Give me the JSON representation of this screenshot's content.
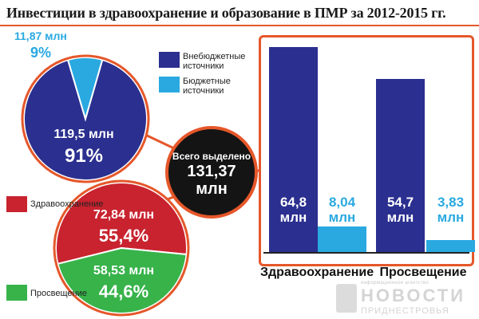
{
  "title": "Инвестиции в здравоохранение и образование в ПМР за 2012-2015 гг.",
  "colors": {
    "dark_blue": "#2b2f8f",
    "light_blue": "#2aa9e0",
    "red": "#c8232f",
    "green": "#37b34a",
    "accent": "#e5572a"
  },
  "legend_sources": [
    {
      "label": "Внебюджетные источники",
      "color": "#2b2f8f"
    },
    {
      "label": "Бюджетные источники",
      "color": "#2aa9e0"
    }
  ],
  "legend_sectors": [
    {
      "label": "Здравоохранение",
      "color": "#c8232f"
    },
    {
      "label": "Просвещение",
      "color": "#37b34a"
    }
  ],
  "total": {
    "caption": "Всего выделено",
    "value_line1": "131,37",
    "value_line2": "млн"
  },
  "chart_data": [
    {
      "type": "pie",
      "slices": [
        {
          "label": "Внебюджетные источники",
          "value": 119.5,
          "value_text": "119,5 млн",
          "percent_text": "91%",
          "color": "#2b2f8f"
        },
        {
          "label": "Бюджетные источники",
          "value": 11.87,
          "value_text": "11,87 млн",
          "percent_text": "9%",
          "color": "#2aa9e0"
        }
      ]
    },
    {
      "type": "pie",
      "slices": [
        {
          "label": "Здравоохранение",
          "value": 72.84,
          "value_text": "72,84 млн",
          "percent_text": "55,4%",
          "color": "#c8232f"
        },
        {
          "label": "Просвещение",
          "value": 58.53,
          "value_text": "58,53 млн",
          "percent_text": "44,6%",
          "color": "#37b34a"
        }
      ]
    },
    {
      "type": "bar",
      "categories": [
        "Здравоохранение",
        "Просвещение"
      ],
      "series": [
        {
          "name": "Внебюджетные источники",
          "values": [
            64.8,
            54.7
          ],
          "labels": [
            "64,8",
            "54,7"
          ],
          "color": "#2b2f8f"
        },
        {
          "name": "Бюджетные источники",
          "values": [
            8.04,
            3.83
          ],
          "labels": [
            "8,04",
            "3,83"
          ],
          "color": "#2aa9e0"
        }
      ],
      "unit_label": "млн",
      "ylim": [
        0,
        72
      ]
    }
  ],
  "watermark": {
    "small": "информационное агентство",
    "big": "НОВОСТИ",
    "sub": "ПРИДНЕСТРОВЬЯ"
  }
}
